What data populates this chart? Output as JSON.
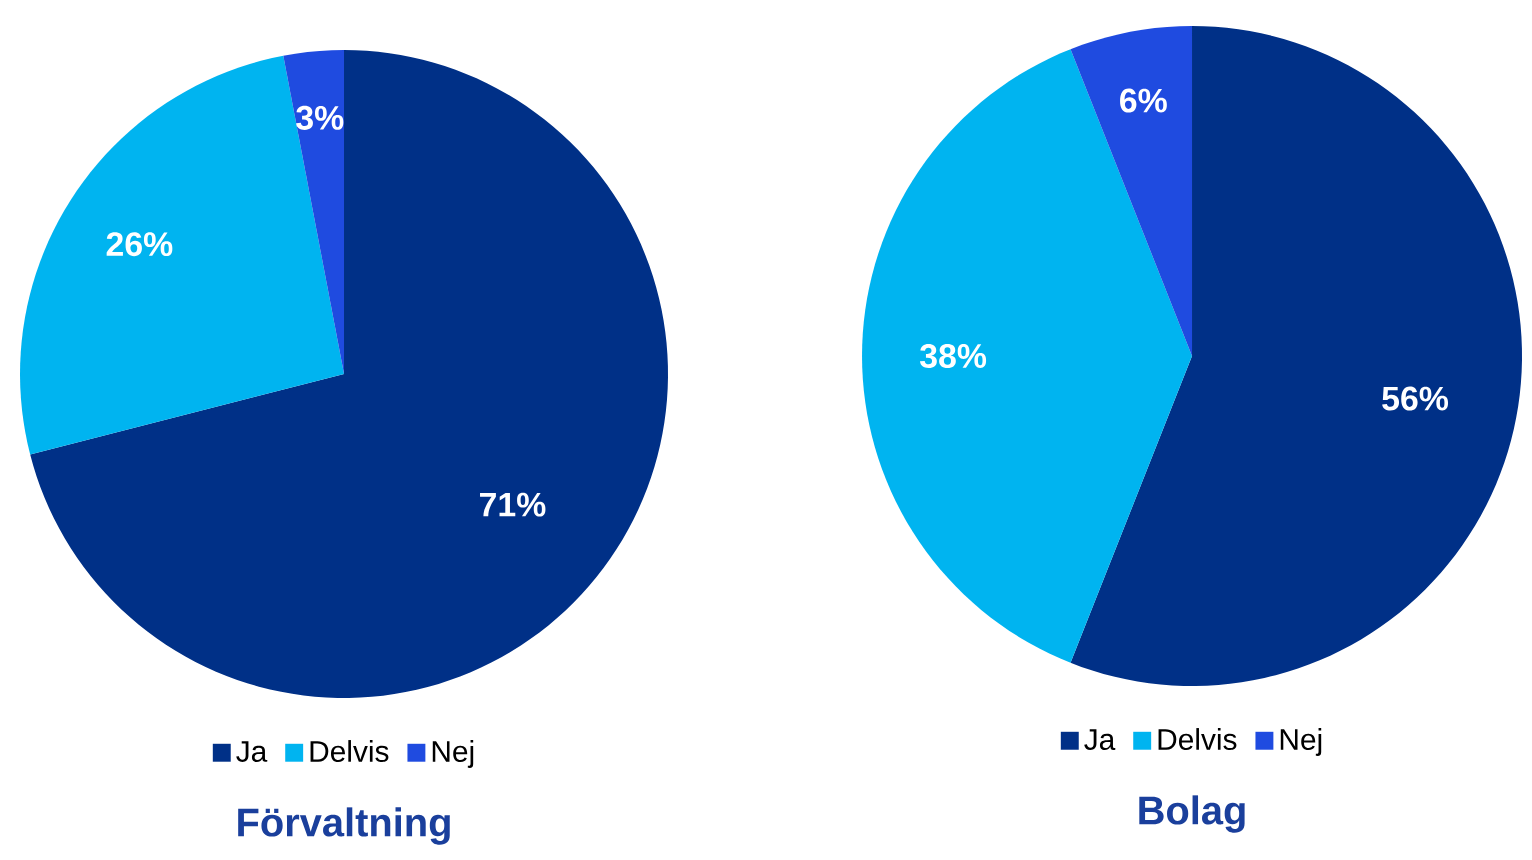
{
  "chart_data": [
    {
      "type": "pie",
      "title": "Förvaltning",
      "categories": [
        "Ja",
        "Delvis",
        "Nej"
      ],
      "values": [
        71,
        26,
        3
      ],
      "colors": [
        "#003087",
        "#00b4f0",
        "#1f4be0"
      ],
      "value_labels": [
        "71%",
        "26%",
        "3%"
      ],
      "legend": "bottom"
    },
    {
      "type": "pie",
      "title": "Bolag",
      "categories": [
        "Ja",
        "Delvis",
        "Nej"
      ],
      "values": [
        56,
        38,
        6
      ],
      "colors": [
        "#003087",
        "#00b4f0",
        "#1f4be0"
      ],
      "value_labels": [
        "56%",
        "38%",
        "6%"
      ],
      "legend": "bottom"
    }
  ]
}
